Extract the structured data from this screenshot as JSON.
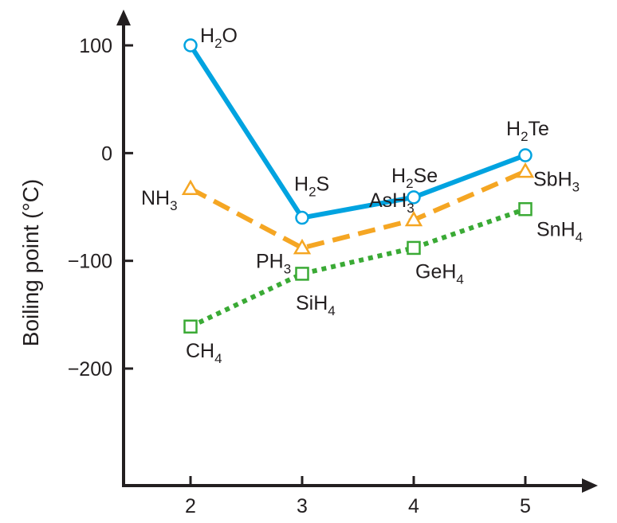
{
  "chart_data": {
    "type": "line",
    "title": "",
    "xlabel": "",
    "ylabel": "Boiling point (°C)",
    "x": [
      2,
      3,
      4,
      5
    ],
    "x_tick_labels": [
      "2",
      "3",
      "4",
      "5"
    ],
    "y_tick_labels": [
      "100",
      "0",
      "−100",
      "−200"
    ],
    "y_ticks": [
      100,
      0,
      -100,
      -200
    ],
    "xlim": [
      1.4,
      5.7
    ],
    "ylim": [
      -308,
      130
    ],
    "grid": false,
    "series": [
      {
        "key": "group16",
        "color": "#00a3e0",
        "line_style": "solid",
        "marker": "circle",
        "values": [
          100,
          -60,
          -41,
          -2
        ],
        "labels": [
          {
            "base": "H",
            "sub": "2",
            "rest": "O"
          },
          {
            "base": "H",
            "sub": "2",
            "rest": "S"
          },
          {
            "base": "H",
            "sub": "2",
            "rest": "Se"
          },
          {
            "base": "H",
            "sub": "2",
            "rest": "Te"
          }
        ]
      },
      {
        "key": "group15",
        "color": "#f5a623",
        "line_style": "dashed",
        "marker": "triangle",
        "values": [
          -33,
          -88,
          -62,
          -17
        ],
        "labels": [
          {
            "base": "NH",
            "sub": "3",
            "rest": ""
          },
          {
            "base": "PH",
            "sub": "3",
            "rest": ""
          },
          {
            "base": "AsH",
            "sub": "3",
            "rest": ""
          },
          {
            "base": "SbH",
            "sub": "3",
            "rest": ""
          }
        ]
      },
      {
        "key": "group14",
        "color": "#3aaa35",
        "line_style": "dotted",
        "marker": "square",
        "values": [
          -161,
          -112,
          -88,
          -52
        ],
        "labels": [
          {
            "base": "CH",
            "sub": "4",
            "rest": ""
          },
          {
            "base": "SiH",
            "sub": "4",
            "rest": ""
          },
          {
            "base": "GeH",
            "sub": "4",
            "rest": ""
          },
          {
            "base": "SnH",
            "sub": "4",
            "rest": ""
          }
        ]
      }
    ]
  }
}
